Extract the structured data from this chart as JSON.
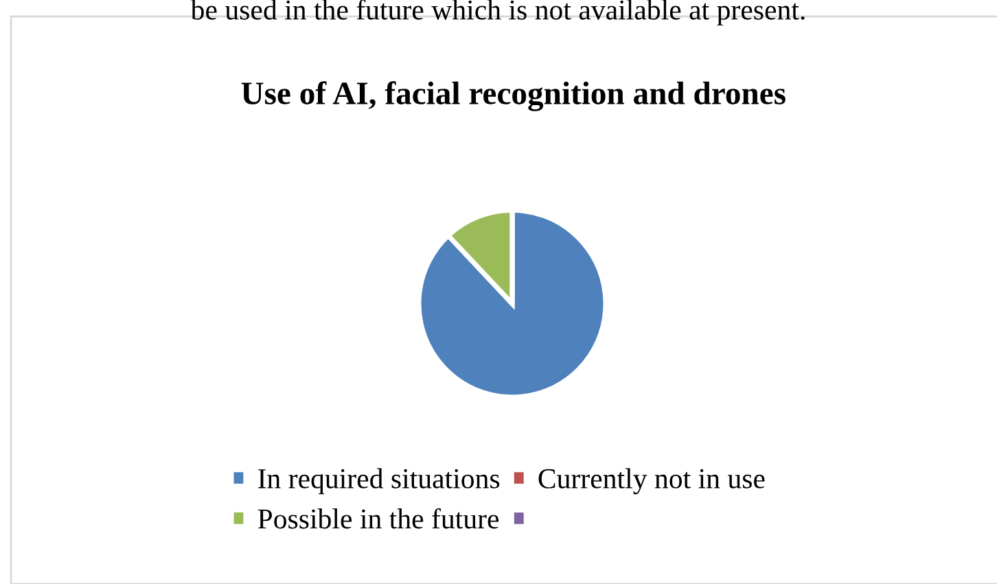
{
  "chart_data": {
    "type": "pie",
    "title": "Use of AI, facial recognition and drones",
    "annotations": [
      "be used in the future which is not available at present."
    ],
    "categories": [
      "In required situations",
      "Currently not in use",
      "Possible in the future",
      null
    ],
    "values": [
      88,
      0,
      12,
      0
    ],
    "colors": [
      "#4f81bd",
      "#c0504d",
      "#9bbb59",
      "#8064a2"
    ],
    "legend": "bottom"
  }
}
